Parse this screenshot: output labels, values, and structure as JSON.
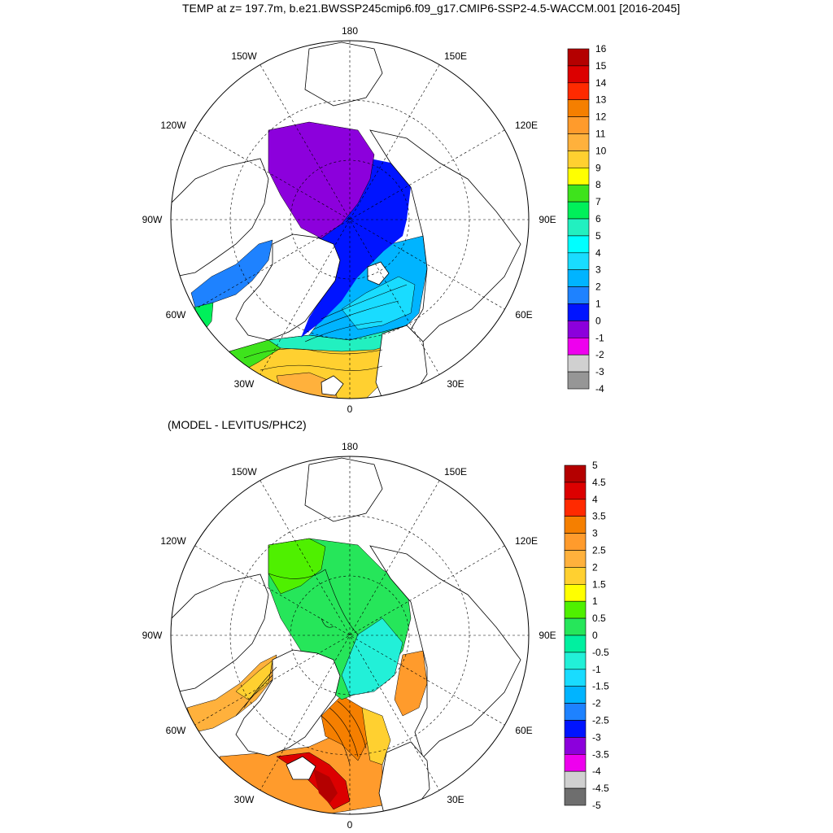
{
  "title": "TEMP at z= 197.7m, b.e21.BWSSP245cmip6.f09_g17.CMIP6-SSP2-4.5-WACCM.001 [2016-2045]",
  "subtitle": "(MODEL - LEVITUS/PHC2)",
  "lon_labels": {
    "top": "180",
    "bottom": "0",
    "w150": "150W",
    "e150": "150E",
    "w120": "120W",
    "e120": "120E",
    "w90": "90W",
    "e90": "90E",
    "w60": "60W",
    "e60": "60E",
    "w30": "30W",
    "e30": "30E"
  },
  "panel1": {
    "colorbar_labels": [
      "16",
      "15",
      "14",
      "13",
      "12",
      "11",
      "10",
      "9",
      "8",
      "7",
      "6",
      "5",
      "4",
      "3",
      "2",
      "1",
      "0",
      "-1",
      "-2",
      "-3",
      "-4"
    ],
    "colorbar_colors": [
      "#b40000",
      "#dc0000",
      "#ff2a00",
      "#f57f00",
      "#ff9b2c",
      "#ffb13c",
      "#ffd030",
      "#ffff00",
      "#3ee31c",
      "#00f05a",
      "#22f0c0",
      "#00ffff",
      "#19dcff",
      "#00b4ff",
      "#1e82ff",
      "#0014ff",
      "#8c00dc",
      "#ee00ee",
      "#d0d0d0",
      "#969696"
    ]
  },
  "panel2": {
    "colorbar_labels": [
      "5",
      "4.5",
      "4",
      "3.5",
      "3",
      "2.5",
      "2",
      "1.5",
      "1",
      "0.5",
      "0",
      "-0.5",
      "-1",
      "-1.5",
      "-2",
      "-2.5",
      "-3",
      "-3.5",
      "-4",
      "-4.5",
      "-5"
    ],
    "colorbar_colors": [
      "#b40000",
      "#dc0000",
      "#ff2a00",
      "#f57f00",
      "#ff9b2c",
      "#ffb13c",
      "#ffd030",
      "#ffff00",
      "#4ff000",
      "#26e65a",
      "#00f0a0",
      "#22f0d8",
      "#19dcff",
      "#00b4ff",
      "#1e82ff",
      "#0014ff",
      "#8c00dc",
      "#ee00ee",
      "#d0d0d0",
      "#6e6e6e"
    ]
  }
}
